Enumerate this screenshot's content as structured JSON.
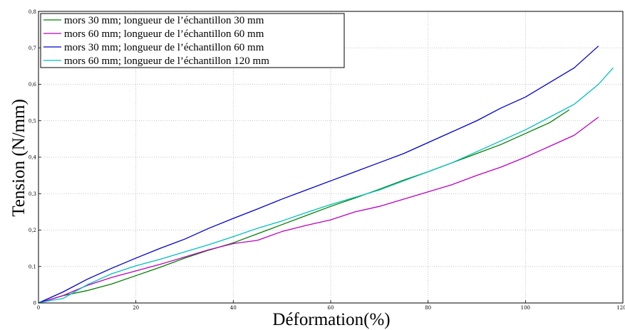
{
  "chart_data": {
    "type": "line",
    "xlabel": "Déformation(%)",
    "ylabel": "Tension (N/mm)",
    "xlim": [
      0,
      120
    ],
    "ylim": [
      0,
      0.8
    ],
    "x_ticks": [
      "0",
      "20",
      "40",
      "60",
      "80",
      "100",
      "120"
    ],
    "y_ticks": [
      "0",
      "0,1",
      "0,2",
      "0,3",
      "0,4",
      "0,5",
      "0,6",
      "0,7",
      "0,8"
    ],
    "grid": true,
    "legend_position": "top-left",
    "series": [
      {
        "name": "mors 30 mm; longueur de l’échantillon 30 mm",
        "color": "#008000",
        "x": [
          0,
          5,
          10,
          15,
          20,
          25,
          30,
          35,
          40,
          45,
          50,
          55,
          60,
          65,
          70,
          75,
          80,
          85,
          90,
          95,
          100,
          105,
          109
        ],
        "y": [
          0,
          0.02,
          0.034,
          0.052,
          0.075,
          0.098,
          0.123,
          0.145,
          0.165,
          0.19,
          0.215,
          0.24,
          0.265,
          0.288,
          0.312,
          0.337,
          0.36,
          0.385,
          0.41,
          0.435,
          0.465,
          0.495,
          0.53
        ]
      },
      {
        "name": "mors 60 mm; longueur de l’échantillon 60 mm",
        "color": "#BF00BF",
        "x": [
          0,
          5,
          10,
          15,
          20,
          25,
          30,
          35,
          40,
          45,
          50,
          55,
          60,
          65,
          70,
          75,
          80,
          85,
          90,
          95,
          100,
          105,
          110,
          115
        ],
        "y": [
          0,
          0.02,
          0.048,
          0.07,
          0.088,
          0.106,
          0.126,
          0.146,
          0.163,
          0.172,
          0.196,
          0.213,
          0.228,
          0.25,
          0.265,
          0.285,
          0.305,
          0.325,
          0.35,
          0.373,
          0.4,
          0.43,
          0.46,
          0.51
        ]
      },
      {
        "name": "mors 30 mm; longueur de l’échantillon 60 mm",
        "color": "#0000CC",
        "x": [
          0,
          5,
          10,
          15,
          20,
          25,
          30,
          35,
          40,
          45,
          50,
          55,
          60,
          65,
          70,
          75,
          80,
          85,
          90,
          95,
          100,
          105,
          110,
          115
        ],
        "y": [
          0,
          0.03,
          0.065,
          0.095,
          0.123,
          0.15,
          0.175,
          0.205,
          0.232,
          0.258,
          0.285,
          0.31,
          0.335,
          0.36,
          0.385,
          0.41,
          0.44,
          0.47,
          0.5,
          0.535,
          0.565,
          0.605,
          0.645,
          0.705
        ]
      },
      {
        "name": "mors 60 mm; longueur de l’échantillon 120 mm",
        "color": "#00BFBF",
        "x": [
          0,
          3,
          5,
          10,
          15,
          20,
          25,
          30,
          35,
          40,
          45,
          50,
          55,
          60,
          65,
          70,
          75,
          80,
          85,
          90,
          95,
          100,
          105,
          110,
          115,
          118
        ],
        "y": [
          0,
          0.008,
          0.012,
          0.05,
          0.08,
          0.102,
          0.12,
          0.14,
          0.16,
          0.182,
          0.205,
          0.225,
          0.248,
          0.27,
          0.29,
          0.31,
          0.335,
          0.36,
          0.385,
          0.415,
          0.445,
          0.475,
          0.51,
          0.545,
          0.6,
          0.645
        ]
      }
    ]
  }
}
